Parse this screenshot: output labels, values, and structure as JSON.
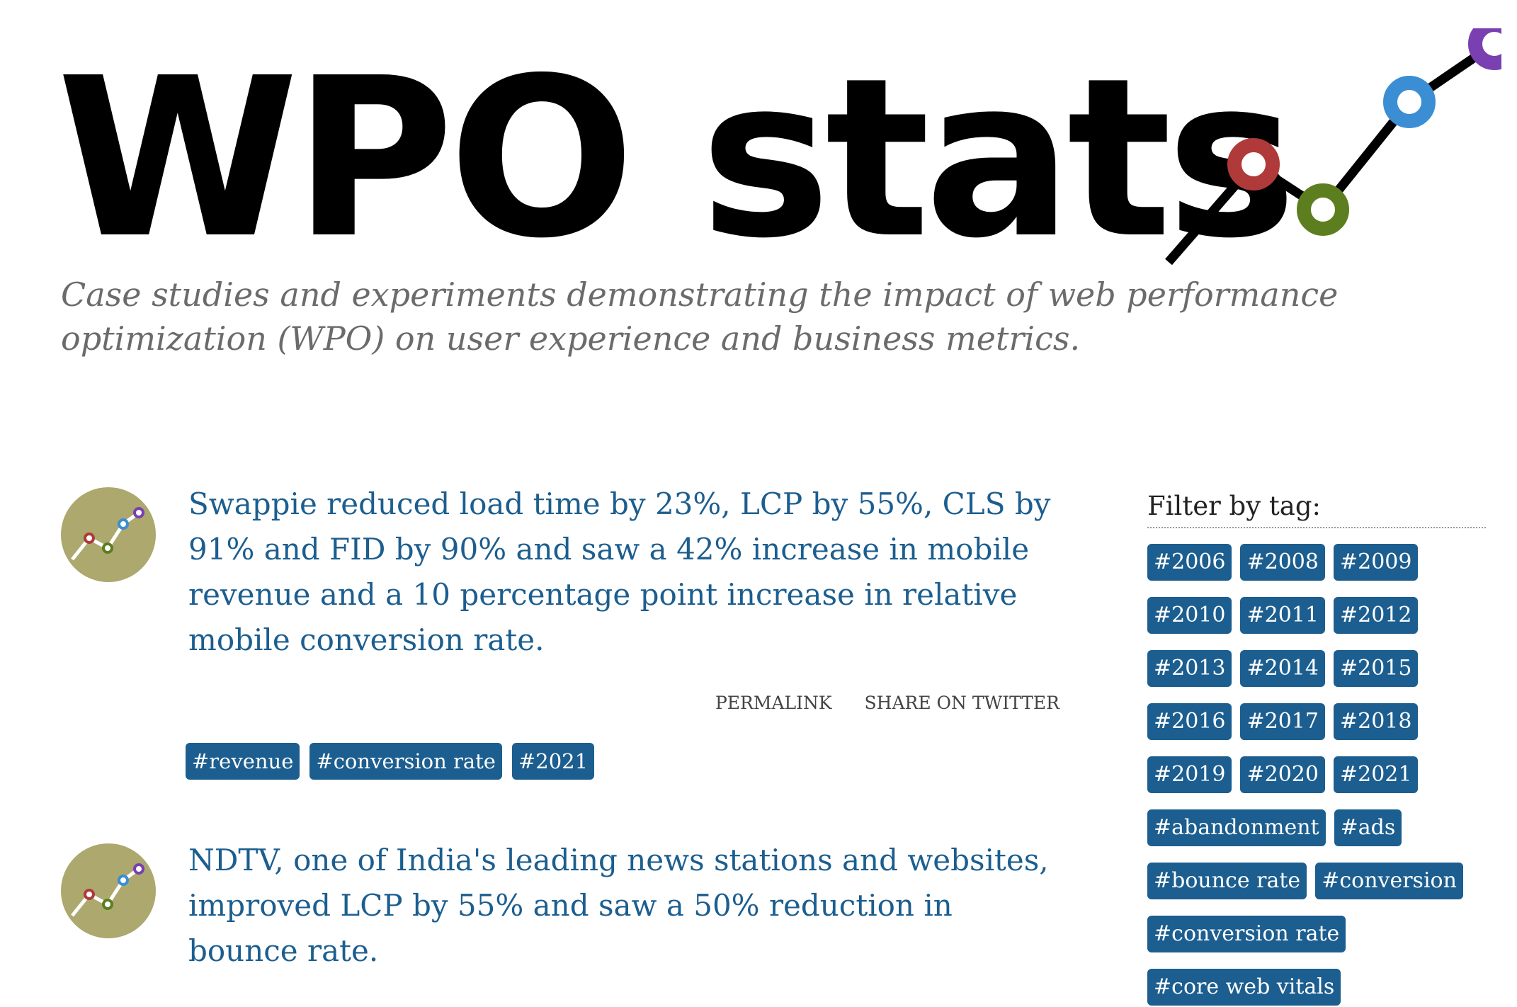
{
  "site": {
    "title": "WPO stats",
    "tagline": "Case studies and experiments demonstrating the impact of web performance optimization (WPO) on user experience and business metrics.",
    "logo_colors": [
      "#b03a3a",
      "#5d7e1f",
      "#3b8ed3",
      "#7a3fb0"
    ]
  },
  "posts": [
    {
      "avatar_icon": "wpo-stats-logo-icon",
      "title": "Swappie reduced load time by 23%, LCP by 55%, CLS by 91% and FID by 90% and saw a 42% increase in mobile revenue and a 10 percentage point increase in relative mobile conversion rate.",
      "permalink_label": "PERMALINK",
      "share_label": "SHARE ON TWITTER",
      "tags": [
        "#revenue",
        "#conversion rate",
        "#2021"
      ]
    },
    {
      "avatar_icon": "wpo-stats-logo-icon",
      "title": "NDTV, one of India's leading news stations and websites, improved LCP by 55% and saw a 50% reduction in bounce rate."
    }
  ],
  "sidebar": {
    "heading": "Filter by tag:",
    "tags": [
      "#2006",
      "#2008",
      "#2009",
      "#2010",
      "#2011",
      "#2012",
      "#2013",
      "#2014",
      "#2015",
      "#2016",
      "#2017",
      "#2018",
      "#2019",
      "#2020",
      "#2021",
      "#abandonment",
      "#ads",
      "#bounce rate",
      "#conversion",
      "#conversion rate",
      "#core web vitals"
    ]
  },
  "colors": {
    "link": "#1c5e8f",
    "tag_background": "#1c5e8f",
    "avatar_background": "#aca86e",
    "tagline": "#6b6b6b"
  }
}
